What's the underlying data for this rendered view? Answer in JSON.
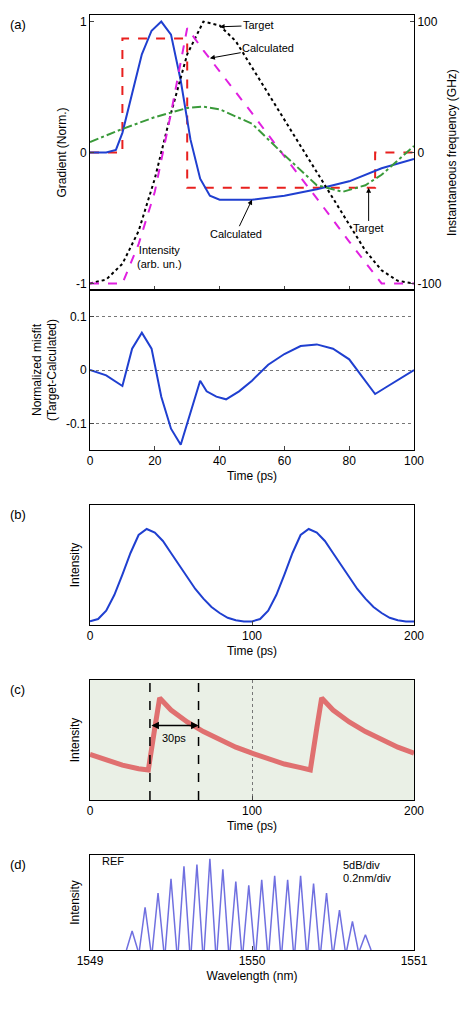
{
  "chart_data": [
    {
      "type": "line",
      "title": "(a)",
      "y_label": "Gradient (Norm.)",
      "y2_label": "Instantaneous frequency (GHz)",
      "xlim": [
        0,
        100
      ],
      "xticks": [
        0,
        20,
        40,
        60,
        80,
        100
      ],
      "ylim": [
        -1.05,
        1.05
      ],
      "yticks": [
        -1,
        0,
        1
      ],
      "y2lim": [
        -105,
        105
      ],
      "y2ticks": [
        -100,
        0,
        100
      ],
      "tick_labels": "y",
      "series": [
        {
          "x": [
            0,
            10,
            10,
            30,
            30,
            88,
            88,
            100
          ],
          "values": [
            0,
            0,
            0.87,
            0.87,
            -0.27,
            -0.27,
            0,
            0
          ],
          "color": "#e8201e",
          "line_style": "dash"
        },
        {
          "x": [
            0,
            5,
            8,
            10,
            13,
            16,
            19,
            22,
            25,
            28,
            31,
            34,
            37,
            40,
            50,
            60,
            70,
            80,
            90,
            100
          ],
          "values": [
            0,
            0,
            0.02,
            0.15,
            0.45,
            0.75,
            0.93,
            1.0,
            0.9,
            0.55,
            0.1,
            -0.2,
            -0.33,
            -0.36,
            -0.36,
            -0.33,
            -0.28,
            -0.22,
            -0.12,
            -0.05
          ],
          "color": "#1f3fd0",
          "line_style": "solid"
        },
        {
          "x": [
            0,
            5,
            10,
            15,
            20,
            25,
            30,
            35,
            40,
            45,
            50,
            55,
            60,
            65,
            70,
            75,
            80,
            85,
            90,
            95,
            100
          ],
          "values": [
            -1,
            -0.97,
            -0.85,
            -0.6,
            -0.2,
            0.3,
            0.75,
            1.0,
            0.97,
            0.85,
            0.65,
            0.45,
            0.25,
            0.05,
            -0.15,
            -0.35,
            -0.55,
            -0.75,
            -0.9,
            -0.98,
            -1
          ],
          "color": "#000000",
          "line_style": "dot"
        },
        {
          "x": [
            0,
            10,
            15,
            20,
            25,
            30,
            35,
            40,
            50,
            60,
            70,
            80,
            90,
            100
          ],
          "values": [
            -1,
            -1,
            -0.7,
            -0.3,
            0.3,
            0.95,
            0.78,
            0.62,
            0.3,
            -0.03,
            -0.35,
            -0.68,
            -1,
            -1
          ],
          "color": "#e020e0",
          "line_style": "dash"
        },
        {
          "x": [
            0,
            10,
            20,
            30,
            35,
            40,
            50,
            60,
            70,
            78,
            85,
            90,
            100
          ],
          "values": [
            8,
            18,
            27,
            34,
            35,
            33,
            22,
            -2,
            -25,
            -30,
            -25,
            -17,
            5
          ],
          "color": "#3a9a3a",
          "line_style": "dashdot",
          "axis": "y2"
        }
      ],
      "annotations": [
        {
          "text": "Target",
          "x": 40,
          "y": 0.96,
          "text_x": 52,
          "text_y": 0.97
        },
        {
          "text": "Calculated",
          "x": 37,
          "y": 0.72,
          "text_x": 55,
          "text_y": 0.8
        },
        {
          "text": "Calculated",
          "x": 50,
          "y": -0.36,
          "text_x": 45,
          "text_y": -0.62
        },
        {
          "text": "Target",
          "x": 86,
          "y": -0.27,
          "text_x": 86,
          "text_y": -0.58
        },
        {
          "text": "Intensity\n(arb. un.)",
          "x": 14,
          "y": -0.8
        }
      ]
    },
    {
      "type": "line",
      "y_label": "Normalized misfit\n(Target-Calculated)",
      "x_label": "Time (ps)",
      "xlim": [
        0,
        100
      ],
      "xticks": [
        0,
        20,
        40,
        60,
        80,
        100
      ],
      "ylim": [
        -0.15,
        0.15
      ],
      "yticks": [
        -0.1,
        0,
        0.1
      ],
      "grid": "y",
      "series": [
        {
          "x": [
            0,
            5,
            10,
            13,
            16,
            19,
            22,
            25,
            28,
            31,
            34,
            36,
            39,
            42,
            46,
            50,
            55,
            60,
            65,
            70,
            75,
            80,
            85,
            88,
            92,
            96,
            100
          ],
          "values": [
            0,
            -0.01,
            -0.03,
            0.04,
            0.07,
            0.04,
            -0.05,
            -0.11,
            -0.14,
            -0.08,
            -0.02,
            -0.04,
            -0.05,
            -0.055,
            -0.04,
            -0.02,
            0.01,
            0.03,
            0.045,
            0.048,
            0.04,
            0.02,
            -0.02,
            -0.045,
            -0.03,
            -0.015,
            0
          ],
          "color": "#1f3fd0",
          "line_style": "solid"
        }
      ]
    },
    {
      "type": "line",
      "title": "(b)",
      "y_label": "Intensity",
      "x_label": "Time (ps)",
      "xlim": [
        0,
        200
      ],
      "xticks": [
        0,
        100,
        200
      ],
      "ylim": [
        0,
        1
      ],
      "tick_labels": "x",
      "series": [
        {
          "x": [
            0,
            5,
            10,
            15,
            20,
            25,
            30,
            35,
            40,
            45,
            50,
            55,
            60,
            65,
            70,
            75,
            80,
            85,
            90,
            95,
            100,
            105,
            110,
            115,
            120,
            125,
            130,
            135,
            140,
            145,
            150,
            155,
            160,
            165,
            170,
            175,
            180,
            185,
            190,
            195,
            200
          ],
          "values": [
            0.03,
            0.05,
            0.12,
            0.25,
            0.42,
            0.6,
            0.75,
            0.8,
            0.77,
            0.7,
            0.6,
            0.5,
            0.4,
            0.3,
            0.22,
            0.15,
            0.1,
            0.06,
            0.04,
            0.03,
            0.03,
            0.05,
            0.12,
            0.25,
            0.42,
            0.6,
            0.75,
            0.8,
            0.77,
            0.7,
            0.6,
            0.5,
            0.4,
            0.3,
            0.22,
            0.15,
            0.1,
            0.06,
            0.04,
            0.03,
            0.03
          ],
          "color": "#1f3fd0",
          "line_style": "solid"
        }
      ]
    },
    {
      "type": "line",
      "title": "(c)",
      "y_label": "Intensity",
      "x_label": "Time (ps)",
      "xlim": [
        0,
        200
      ],
      "xticks": [
        0,
        100,
        200
      ],
      "ylim": [
        0,
        1
      ],
      "tick_labels": "x",
      "grid": true,
      "series": [
        {
          "x": [
            0,
            10,
            20,
            30,
            36,
            40,
            43,
            50,
            60,
            70,
            80,
            90,
            100,
            110,
            120,
            130,
            136,
            140,
            143,
            150,
            160,
            170,
            180,
            190,
            200
          ],
          "values": [
            0.38,
            0.33,
            0.29,
            0.26,
            0.25,
            0.6,
            0.85,
            0.75,
            0.65,
            0.57,
            0.5,
            0.44,
            0.39,
            0.34,
            0.3,
            0.27,
            0.25,
            0.6,
            0.85,
            0.75,
            0.65,
            0.57,
            0.5,
            0.44,
            0.39
          ],
          "color": "#e07070",
          "line_style": "solid"
        }
      ],
      "annotations": [
        {
          "text": "30ps",
          "x": 37,
          "x_end": 67,
          "y": 0.62
        }
      ]
    },
    {
      "type": "comb",
      "title": "(d)",
      "y_label": "Intensity",
      "x_label": "Wavelength (nm)",
      "xlim": [
        1549,
        1551
      ],
      "xticks": [
        1549,
        1550,
        1551
      ],
      "ylim": [
        0,
        10
      ],
      "tick_labels": "x",
      "series": [
        {
          "x": [
            1549.26,
            1549.34,
            1549.42,
            1549.5,
            1549.58,
            1549.66,
            1549.74,
            1549.82,
            1549.9,
            1549.98,
            1550.06,
            1550.14,
            1550.22,
            1550.3,
            1550.38,
            1550.46,
            1550.54,
            1550.62,
            1550.7
          ],
          "values": [
            2.0,
            4.5,
            6.0,
            7.5,
            8.8,
            9.0,
            9.6,
            8.5,
            7.2,
            6.8,
            7.4,
            7.8,
            7.4,
            7.8,
            7.0,
            6.0,
            4.2,
            3.0,
            1.6
          ],
          "color": "#7070e0",
          "line_style": "solid"
        }
      ],
      "annotations": [
        {
          "text": "5dB/div",
          "x": 1550.55,
          "y": 9.0
        },
        {
          "text": "0.2nm/div",
          "x": 1550.55,
          "y": 7.6
        },
        {
          "text": "REF",
          "x": 1549.06,
          "y": 9.4
        }
      ]
    }
  ]
}
